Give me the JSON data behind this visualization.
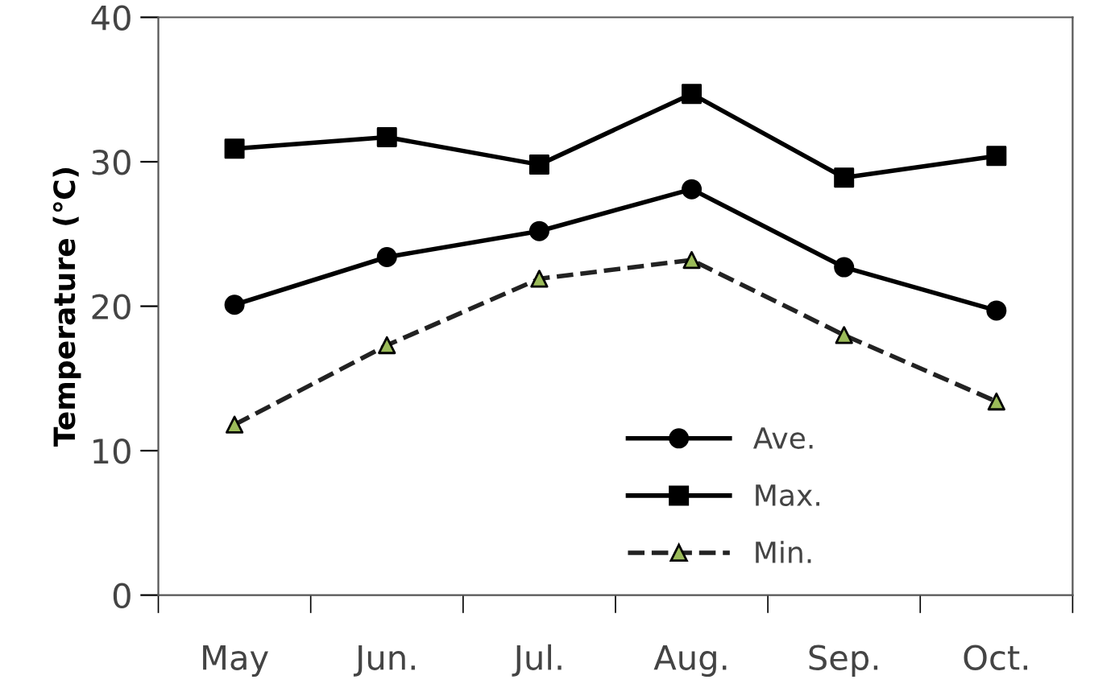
{
  "chart_data": {
    "type": "line",
    "ylabel": "Temperature (℃)",
    "categories": [
      "May",
      "Jun.",
      "Jul.",
      "Aug.",
      "Sep.",
      "Oct."
    ],
    "series": [
      {
        "name": "Ave.",
        "color": "#000000",
        "marker": "circle",
        "line_style": "solid",
        "values": [
          20.1,
          23.4,
          25.2,
          28.1,
          22.7,
          19.7
        ]
      },
      {
        "name": "Max.",
        "color": "#000000",
        "marker": "square",
        "line_style": "solid",
        "values": [
          30.9,
          31.7,
          29.8,
          34.7,
          28.9,
          30.4
        ]
      },
      {
        "name": "Min.",
        "color": "#222222",
        "colors": [
          "#9bbb59",
          "#9bbb59",
          "#9bbb59",
          "#9bbb59",
          "#9bbb59",
          "#9bbb59"
        ],
        "marker": "triangle",
        "line_style": "dashed",
        "values": [
          11.8,
          17.3,
          21.9,
          23.2,
          18.0,
          13.4
        ]
      }
    ],
    "ylim": [
      0,
      40
    ],
    "yticks": [
      0,
      10,
      20,
      30,
      40
    ],
    "grid": false,
    "legend": "bottom"
  }
}
